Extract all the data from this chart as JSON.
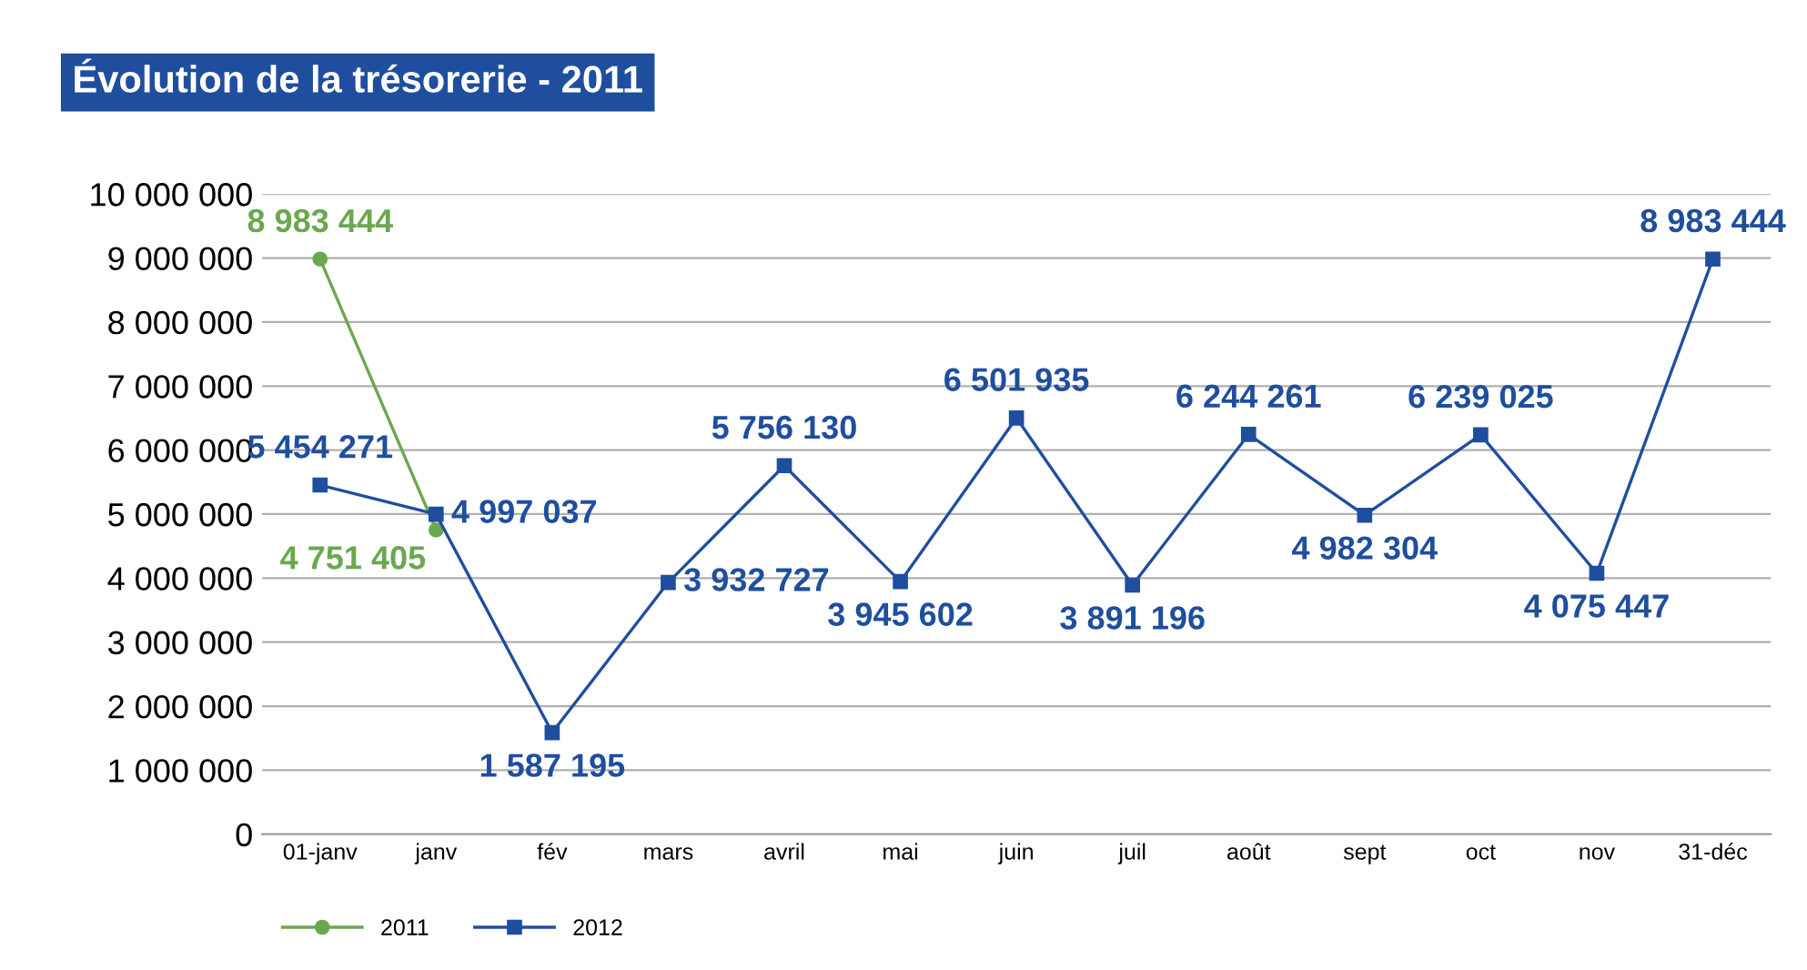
{
  "chart_data": {
    "type": "line",
    "title": "Évolution de la trésorerie - 2011",
    "categories": [
      "01-janv",
      "janv",
      "fév",
      "mars",
      "avril",
      "mai",
      "juin",
      "juil",
      "août",
      "sept",
      "oct",
      "nov",
      "31-déc"
    ],
    "series": [
      {
        "name": "2011",
        "color": "#6aa84f",
        "marker": "circle",
        "values": [
          8983444,
          4751405,
          null,
          null,
          null,
          null,
          null,
          null,
          null,
          null,
          null,
          null,
          null
        ],
        "value_labels": [
          "8 983 444",
          "4 751 405",
          null,
          null,
          null,
          null,
          null,
          null,
          null,
          null,
          null,
          null,
          null
        ]
      },
      {
        "name": "2012",
        "color": "#1f4e9e",
        "marker": "square",
        "values": [
          5454271,
          4997037,
          1587195,
          3932727,
          5756130,
          3945602,
          6501935,
          3891196,
          6244261,
          4982304,
          6239025,
          4075447,
          8983444
        ],
        "value_labels": [
          "5 454 271",
          "4 997 037",
          "1 587 195",
          "3 932 727",
          "5 756 130",
          "3 945 602",
          "6 501 935",
          "3 891 196",
          "6 244 261",
          "4 982 304",
          "6 239 025",
          "4 075 447",
          "8 983 444"
        ]
      }
    ],
    "ylim": [
      0,
      10000000
    ],
    "yticks": [
      0,
      {
        "value": 1000000,
        "label": "1 000 000"
      },
      {
        "value": 2000000,
        "label": "2 000 000"
      },
      {
        "value": 3000000,
        "label": "3 000 000"
      },
      {
        "value": 4000000,
        "label": "4 000 000"
      },
      {
        "value": 5000000,
        "label": "5 000 000"
      },
      {
        "value": 6000000,
        "label": "6 000 000"
      },
      {
        "value": 7000000,
        "label": "7 000 000"
      },
      {
        "value": 8000000,
        "label": "8 000 000"
      },
      {
        "value": 9000000,
        "label": "9 000 000"
      },
      {
        "value": 10000000,
        "label": "10 000 000"
      }
    ],
    "grid": "y",
    "legend": "bottom left",
    "line_style": "solid"
  }
}
